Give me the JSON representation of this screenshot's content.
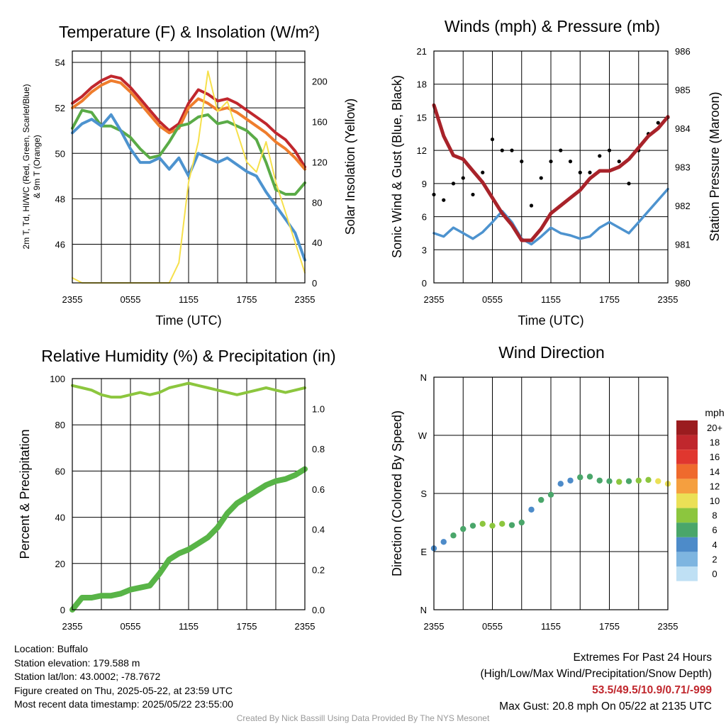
{
  "colors": {
    "red": "#c0272d",
    "orange": "#ef7d2d",
    "green": "#5aab47",
    "blue": "#4d93cf",
    "yellow": "#f6e04b",
    "maroon": "#a8232a",
    "black": "#000000",
    "rh": "#8cc63e",
    "precip": "#58b447"
  },
  "time_ticks": [
    "2355",
    "0555",
    "1155",
    "1755",
    "2355"
  ],
  "chart_data": [
    {
      "type": "line",
      "title": "Temperature (F) & Insolation (W/m²)",
      "xlabel": "Time (UTC)",
      "ylabel_lines": [
        "2m T, Td, HI/WC (Red, Green, Scarlet/Blue)",
        "& 9m T (Orange)"
      ],
      "ylabel_right": "Solar Insolation (Yellow)",
      "ylim": [
        44.3,
        54.5
      ],
      "ylim_right": [
        0,
        230
      ],
      "yticks": [
        "46",
        "48",
        "50",
        "52",
        "54"
      ],
      "yticks_right": [
        "0",
        "40",
        "80",
        "120",
        "160",
        "200"
      ],
      "x": [
        0,
        1,
        2,
        3,
        4,
        5,
        6,
        7,
        8,
        9,
        10,
        11,
        12,
        13,
        14,
        15,
        16,
        17,
        18,
        19,
        20,
        21,
        22,
        23,
        24
      ],
      "series": [
        {
          "color": "red",
          "values": [
            52.2,
            52.5,
            52.9,
            53.2,
            53.4,
            53.3,
            52.9,
            52.4,
            51.9,
            51.4,
            51.0,
            51.3,
            52.2,
            52.8,
            52.6,
            52.3,
            52.4,
            52.2,
            51.9,
            51.6,
            51.3,
            50.9,
            50.6,
            50.1,
            49.4
          ]
        },
        {
          "color": "orange",
          "values": [
            52.0,
            52.3,
            52.7,
            53.0,
            53.2,
            53.1,
            52.7,
            52.2,
            51.7,
            51.2,
            50.9,
            51.1,
            52.0,
            52.4,
            52.2,
            51.9,
            52.0,
            51.8,
            51.5,
            51.2,
            50.9,
            50.5,
            50.2,
            49.8,
            49.3
          ]
        },
        {
          "color": "green",
          "values": [
            51.1,
            51.9,
            51.8,
            51.2,
            51.2,
            51.0,
            50.7,
            50.2,
            49.8,
            49.9,
            50.5,
            51.2,
            51.3,
            51.6,
            51.7,
            51.3,
            51.4,
            51.2,
            51.0,
            50.6,
            49.6,
            48.4,
            48.2,
            48.2,
            48.7
          ]
        },
        {
          "color": "blue",
          "values": [
            50.9,
            51.3,
            51.5,
            51.2,
            51.7,
            51.0,
            50.2,
            49.6,
            49.6,
            49.8,
            49.3,
            49.8,
            49.0,
            50.0,
            49.8,
            49.6,
            49.8,
            49.5,
            49.2,
            49.0,
            48.3,
            47.7,
            47.1,
            46.5,
            45.3
          ]
        },
        {
          "color": "yellow",
          "axis": "right",
          "values": [
            5,
            0,
            0,
            0,
            0,
            0,
            0,
            0,
            0,
            0,
            0,
            20,
            100,
            140,
            210,
            170,
            180,
            150,
            120,
            110,
            140,
            100,
            70,
            40,
            10
          ]
        }
      ]
    },
    {
      "type": "scatter",
      "title": "Winds (mph) & Pressure (mb)",
      "xlabel": "Time (UTC)",
      "ylabel": "Sonic Wind & Gust (Blue, Black)",
      "ylabel_right": "Station Pressure (Maroon)",
      "ylim": [
        0,
        21
      ],
      "ylim_right": [
        980,
        986
      ],
      "yticks": [
        "0",
        "3",
        "6",
        "9",
        "12",
        "15",
        "18",
        "21"
      ],
      "yticks_right": [
        "980",
        "981",
        "982",
        "983",
        "984",
        "985",
        "986"
      ],
      "x": [
        0,
        1,
        2,
        3,
        4,
        5,
        6,
        7,
        8,
        9,
        10,
        11,
        12,
        13,
        14,
        15,
        16,
        17,
        18,
        19,
        20,
        21,
        22,
        23,
        24
      ],
      "wind": [
        4.5,
        4.2,
        5.0,
        4.5,
        4.0,
        4.6,
        5.5,
        6.5,
        5.5,
        4.0,
        3.5,
        4.2,
        5.0,
        4.5,
        4.3,
        4.0,
        4.2,
        5.0,
        5.5,
        5.0,
        4.5,
        5.5,
        6.5,
        7.5,
        8.5
      ],
      "gust": [
        8,
        7.5,
        9,
        9.5,
        8,
        10,
        13,
        12,
        12,
        11,
        7,
        9.5,
        11,
        12,
        11,
        10,
        10,
        11.5,
        12,
        11,
        9,
        12,
        13.5,
        14.5,
        15
      ],
      "pressure": [
        984.6,
        983.8,
        983.3,
        983.2,
        982.9,
        982.6,
        982.2,
        981.8,
        981.5,
        981.1,
        981.1,
        981.4,
        981.8,
        982.0,
        982.2,
        982.4,
        982.7,
        982.9,
        982.9,
        983.0,
        983.2,
        983.5,
        983.8,
        984.0,
        984.3
      ]
    },
    {
      "type": "line",
      "title": "Relative Humidity (%) & Precipitation (in)",
      "ylabel": "Percent & Precipitation",
      "ylim": [
        0,
        100
      ],
      "ylim_right": [
        0.0,
        1.15
      ],
      "yticks": [
        "0",
        "20",
        "40",
        "60",
        "80",
        "100"
      ],
      "yticks_right": [
        "0.0",
        "0.2",
        "0.4",
        "0.6",
        "0.8",
        "1.0"
      ],
      "x": [
        0,
        1,
        2,
        3,
        4,
        5,
        6,
        7,
        8,
        9,
        10,
        11,
        12,
        13,
        14,
        15,
        16,
        17,
        18,
        19,
        20,
        21,
        22,
        23,
        24
      ],
      "series": [
        {
          "name": "RH",
          "color": "rh",
          "values": [
            97,
            96,
            95,
            93,
            92,
            92,
            93,
            94,
            93,
            94,
            96,
            97,
            98,
            97,
            96,
            95,
            94,
            93,
            94,
            95,
            96,
            95,
            94,
            95,
            96
          ]
        },
        {
          "name": "Precip",
          "color": "precip",
          "values": [
            0.0,
            0.06,
            0.06,
            0.07,
            0.07,
            0.08,
            0.1,
            0.11,
            0.12,
            0.18,
            0.25,
            0.28,
            0.3,
            0.33,
            0.36,
            0.41,
            0.48,
            0.53,
            0.56,
            0.59,
            0.62,
            0.64,
            0.65,
            0.67,
            0.7
          ]
        }
      ]
    },
    {
      "type": "scatter",
      "title": "Wind Direction",
      "ylabel": "Direction (Colored By Speed)",
      "yticks": [
        "N",
        "E",
        "S",
        "W",
        "N"
      ],
      "legend_title": "mph",
      "legend_labels": [
        "20+",
        "18",
        "16",
        "14",
        "12",
        "10",
        "8",
        "6",
        "4",
        "2",
        "0"
      ],
      "legend_colors": [
        "#9b1c1f",
        "#c0272d",
        "#e0372f",
        "#ef6a2d",
        "#f59f3f",
        "#ebe056",
        "#8cc63e",
        "#4aa66a",
        "#4d8bc9",
        "#7eb5e0",
        "#bfe0f4"
      ],
      "x": [
        0,
        1,
        2,
        3,
        4,
        5,
        6,
        7,
        8,
        9,
        10,
        11,
        12,
        13,
        14,
        15,
        16,
        17,
        18,
        19,
        20,
        21,
        22,
        23,
        24
      ],
      "direction_deg": [
        95,
        105,
        115,
        125,
        130,
        133,
        130,
        133,
        131,
        135,
        155,
        170,
        178,
        195,
        200,
        205,
        206,
        200,
        199,
        198,
        199,
        200,
        201,
        199,
        195
      ],
      "speed": [
        4,
        4,
        5,
        6,
        6,
        8,
        8,
        7,
        6,
        5,
        4,
        5,
        6,
        4,
        4,
        5,
        6,
        5,
        6,
        7,
        6,
        7,
        8,
        9,
        10
      ]
    }
  ],
  "info": {
    "location": "Location: Buffalo",
    "elevation": "Station elevation: 179.588 m",
    "latlon": "Station lat/lon: 43.0002; -78.7672",
    "created": "Figure created on Thu, 2025-05-22, at 23:59 UTC",
    "recent": "Most recent data timestamp: 2025/05/22 23:55:00"
  },
  "extremes": {
    "title": "Extremes For Past 24 Hours",
    "subtitle": "(High/Low/Max Wind/Precipitation/Snow Depth)",
    "values": "53.5/49.5/10.9/0.71/-999",
    "gust": "Max Gust: 20.8 mph On 05/22 at 2135 UTC"
  },
  "credit": "Created By Nick Bassill Using Data Provided By The NYS Mesonet"
}
